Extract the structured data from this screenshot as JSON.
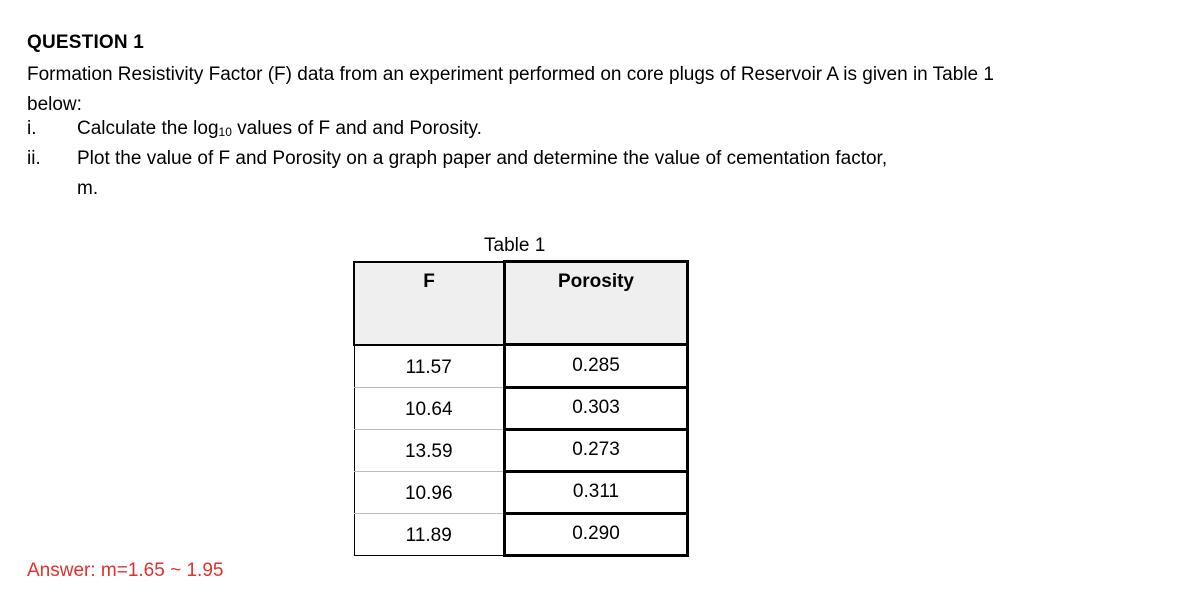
{
  "question": {
    "heading": "QUESTION 1",
    "intro": "Formation Resistivity Factor (F) data from an experiment performed on core plugs of Reservoir A is given in Table 1 below:",
    "items": [
      {
        "number": "i.",
        "text_before": "Calculate the log",
        "subscript": "10",
        "text_after": " values of F and and Porosity."
      },
      {
        "number": "ii.",
        "line1": "Plot the value of F and Porosity on a graph paper and determine the value of cementation factor,",
        "line2": "m."
      }
    ]
  },
  "table": {
    "caption": "Table 1",
    "headers": [
      "F",
      "Porosity"
    ],
    "rows": [
      {
        "F": "11.57",
        "porosity": "0.285"
      },
      {
        "F": "10.64",
        "porosity": "0.303"
      },
      {
        "F": "13.59",
        "porosity": "0.273"
      },
      {
        "F": "10.96",
        "porosity": "0.311"
      },
      {
        "F": "11.89",
        "porosity": "0.290"
      }
    ]
  },
  "answer": "Answer: m=1.65 ~ 1.95"
}
